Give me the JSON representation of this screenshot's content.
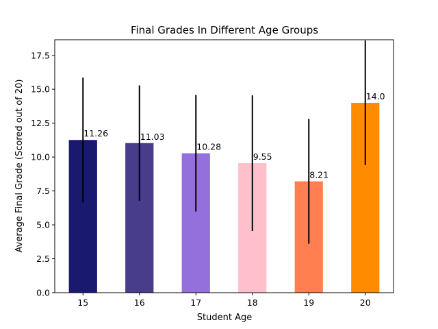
{
  "chart_data": {
    "type": "bar",
    "title": "Final Grades In Different Age Groups",
    "xlabel": "Student Age",
    "ylabel": "Average Final Grade (Scored out of 20)",
    "categories": [
      "15",
      "16",
      "17",
      "18",
      "19",
      "20"
    ],
    "values": [
      11.26,
      11.03,
      10.28,
      9.55,
      8.21,
      14.0
    ],
    "value_labels": [
      "11.26",
      "11.03",
      "10.28",
      "9.55",
      "8.21",
      "14.0"
    ],
    "error": [
      4.6,
      4.25,
      4.3,
      5.0,
      4.6,
      4.6
    ],
    "colors": [
      "#191970",
      "#483d8b",
      "#9370db",
      "#ffc0cb",
      "#ff7f50",
      "#ff8c00"
    ],
    "error_color": "#000000",
    "ylim": [
      0,
      18.65
    ],
    "yticks": [
      0.0,
      2.5,
      5.0,
      7.5,
      10.0,
      12.5,
      15.0,
      17.5
    ],
    "ytick_labels": [
      "0.0",
      "2.5",
      "5.0",
      "7.5",
      "10.0",
      "12.5",
      "15.0",
      "17.5"
    ],
    "grid": false,
    "legend": "none"
  }
}
